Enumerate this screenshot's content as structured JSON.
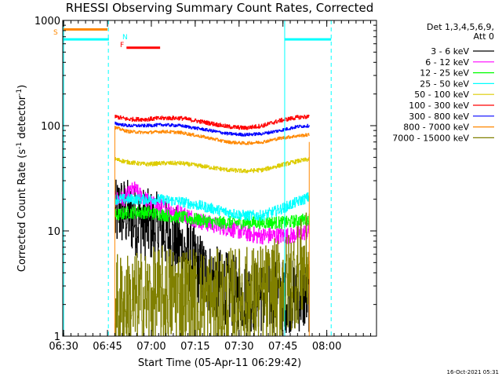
{
  "chart_data": {
    "type": "line",
    "title": "RHESSI Observing Summary Count Rates, Corrected",
    "xlabel": "Start Time (05-Apr-11 06:29:42)",
    "ylabel": "Corrected Count Rate (s⁻¹ detector⁻¹)",
    "ylabel_parts": {
      "base": "Corrected Count Rate (s",
      "sup1": "-1",
      "mid": " detector",
      "sup2": "-1",
      "end": ")"
    },
    "footer": "16-Oct-2021 05:31",
    "y_scale": "log",
    "ylim": [
      1,
      1000
    ],
    "xlim_minutes": [
      389.7,
      497
    ],
    "x_ticks": [
      {
        "label": "06:30",
        "min": 390
      },
      {
        "label": "06:45",
        "min": 405
      },
      {
        "label": "07:00",
        "min": 420
      },
      {
        "label": "07:15",
        "min": 435
      },
      {
        "label": "07:30",
        "min": 450
      },
      {
        "label": "07:45",
        "min": 465
      },
      {
        "label": "08:00",
        "min": 480
      }
    ],
    "y_ticks": [
      {
        "label": "1",
        "v": 1
      },
      {
        "label": "10",
        "v": 10
      },
      {
        "label": "100",
        "v": 100
      },
      {
        "label": "1000",
        "v": 1000
      }
    ],
    "legend_header": [
      "Det 1,3,4,5,6,9,",
      "Att 0"
    ],
    "legend_position": "right",
    "data_interval_minutes": [
      407.5,
      474.0
    ],
    "series": [
      {
        "name": "3 - 6 keV",
        "color": "#000000",
        "anchors": [
          [
            407.5,
            13
          ],
          [
            409,
            16
          ],
          [
            412,
            14
          ],
          [
            416,
            12
          ],
          [
            420,
            11
          ],
          [
            424,
            10
          ],
          [
            428,
            8
          ],
          [
            432,
            6
          ],
          [
            436,
            4.5
          ],
          [
            440,
            3.5
          ],
          [
            444,
            3
          ],
          [
            450,
            2.5
          ],
          [
            456,
            2.4
          ],
          [
            462,
            2.4
          ],
          [
            468,
            2.4
          ],
          [
            472,
            2.4
          ],
          [
            474,
            2.4
          ]
        ],
        "jitter": 0.35
      },
      {
        "name": "6 - 12 keV",
        "color": "#ff00ff",
        "anchors": [
          [
            407.5,
            20
          ],
          [
            410,
            20
          ],
          [
            412,
            22
          ],
          [
            414,
            25
          ],
          [
            416,
            22
          ],
          [
            420,
            18
          ],
          [
            426,
            16
          ],
          [
            432,
            14
          ],
          [
            438,
            12
          ],
          [
            444,
            11
          ],
          [
            450,
            10
          ],
          [
            456,
            9
          ],
          [
            462,
            9
          ],
          [
            468,
            9
          ],
          [
            474,
            10
          ]
        ],
        "jitter": 0.08
      },
      {
        "name": "12 - 25 keV",
        "color": "#00ff00",
        "anchors": [
          [
            407.5,
            14
          ],
          [
            412,
            15
          ],
          [
            418,
            15
          ],
          [
            426,
            14
          ],
          [
            434,
            13
          ],
          [
            442,
            12
          ],
          [
            450,
            12
          ],
          [
            458,
            12
          ],
          [
            466,
            12
          ],
          [
            474,
            13
          ]
        ],
        "jitter": 0.06
      },
      {
        "name": "25 - 50 keV",
        "color": "#00ffff",
        "anchors": [
          [
            407.5,
            20
          ],
          [
            414,
            20
          ],
          [
            422,
            20
          ],
          [
            430,
            19
          ],
          [
            438,
            17
          ],
          [
            446,
            15
          ],
          [
            452,
            14
          ],
          [
            458,
            14
          ],
          [
            464,
            16
          ],
          [
            470,
            19
          ],
          [
            474,
            21
          ]
        ],
        "jitter": 0.05
      },
      {
        "name": "50 - 100 keV",
        "color": "#ddcc00",
        "anchors": [
          [
            407.5,
            48
          ],
          [
            412,
            45
          ],
          [
            418,
            43
          ],
          [
            424,
            44
          ],
          [
            430,
            44
          ],
          [
            438,
            41
          ],
          [
            446,
            38
          ],
          [
            452,
            37
          ],
          [
            458,
            38
          ],
          [
            464,
            42
          ],
          [
            470,
            46
          ],
          [
            474,
            48
          ]
        ],
        "jitter": 0.02
      },
      {
        "name": "100 - 300 keV",
        "color": "#ff0000",
        "anchors": [
          [
            407.5,
            122
          ],
          [
            412,
            115
          ],
          [
            418,
            115
          ],
          [
            424,
            118
          ],
          [
            430,
            118
          ],
          [
            438,
            108
          ],
          [
            446,
            98
          ],
          [
            452,
            95
          ],
          [
            458,
            100
          ],
          [
            464,
            112
          ],
          [
            470,
            120
          ],
          [
            474,
            122
          ]
        ],
        "jitter": 0.02
      },
      {
        "name": "300 - 800 keV",
        "color": "#0000ff",
        "anchors": [
          [
            407.5,
            105
          ],
          [
            412,
            100
          ],
          [
            418,
            100
          ],
          [
            424,
            102
          ],
          [
            430,
            100
          ],
          [
            438,
            92
          ],
          [
            446,
            84
          ],
          [
            452,
            82
          ],
          [
            458,
            84
          ],
          [
            464,
            90
          ],
          [
            470,
            98
          ],
          [
            474,
            100
          ]
        ],
        "jitter": 0.015
      },
      {
        "name": "800 - 7000 keV",
        "color": "#ff8800",
        "anchors": [
          [
            407.5,
            96
          ],
          [
            412,
            88
          ],
          [
            418,
            86
          ],
          [
            424,
            88
          ],
          [
            430,
            86
          ],
          [
            438,
            78
          ],
          [
            446,
            70
          ],
          [
            452,
            68
          ],
          [
            458,
            70
          ],
          [
            464,
            76
          ],
          [
            470,
            80
          ],
          [
            474,
            82
          ]
        ],
        "jitter": 0.015
      },
      {
        "name": "7000 - 15000 keV",
        "color": "#808000",
        "anchors": [
          [
            407.5,
            2
          ],
          [
            414,
            2
          ],
          [
            420,
            2.2
          ],
          [
            428,
            2.5
          ],
          [
            434,
            2.3
          ],
          [
            440,
            2.1
          ],
          [
            446,
            2.2
          ],
          [
            452,
            2.3
          ],
          [
            460,
            2.5
          ],
          [
            466,
            3
          ],
          [
            470,
            4
          ],
          [
            474,
            5
          ]
        ],
        "jitter": 0.5
      },
      {
        "name": "",
        "color": "#ff8800",
        "role": "attenuator/orbit level",
        "values": [
          [
            407.5,
            1
          ],
          [
            474,
            1
          ]
        ]
      }
    ],
    "flags": [
      {
        "label": "S",
        "color": "#ff8800",
        "segments": [
          [
            390,
            405
          ]
        ],
        "level": 820
      },
      {
        "label": "N",
        "color": "#00ffff",
        "segments": [
          [
            389.7,
            405.5
          ],
          [
            465.6,
            481.5
          ]
        ],
        "level": 660
      },
      {
        "label": "F",
        "color": "#ff0000",
        "segments": [
          [
            411.5,
            423
          ]
        ],
        "level": 550
      }
    ],
    "vertical_markers": [
      {
        "color": "#00ffff",
        "style": "solid",
        "min": 390
      },
      {
        "color": "#00ffff",
        "style": "dashed",
        "min": 405.3
      },
      {
        "color": "#00ffff",
        "style": "solid",
        "min": 465.6
      },
      {
        "color": "#00ffff",
        "style": "dashed",
        "min": 481.5
      }
    ]
  }
}
